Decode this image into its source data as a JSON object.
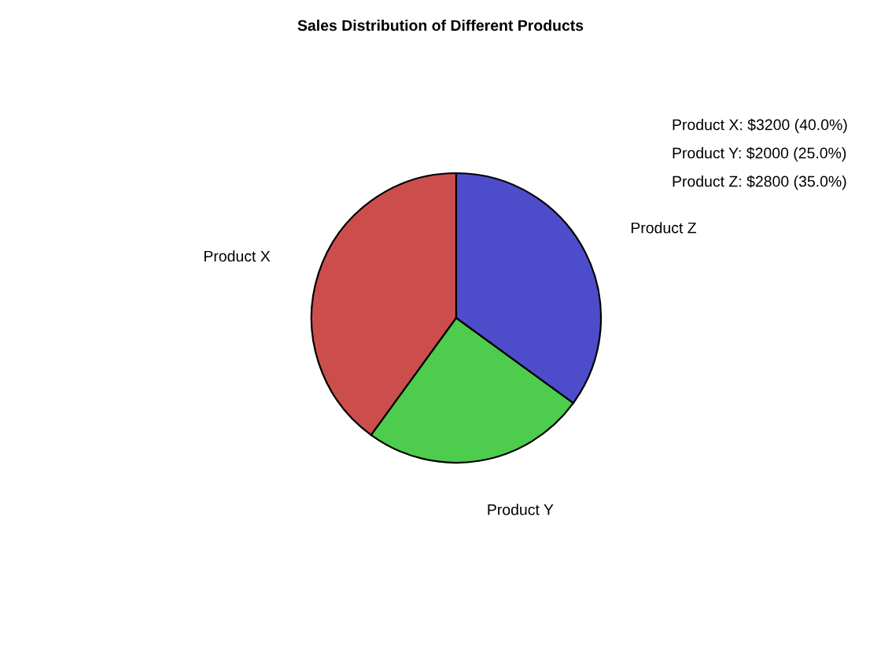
{
  "chart_data": {
    "type": "pie",
    "title": "Sales Distribution of Different Products",
    "categories": [
      "Product X",
      "Product Y",
      "Product Z"
    ],
    "values": [
      40.0,
      25.0,
      35.0
    ],
    "colors": [
      "#cc4e4c",
      "#4dcc4d",
      "#4d4dcc"
    ],
    "annotations": [
      "Product X: $3200 (40.0%)",
      "Product Y: $2000 (25.0%)",
      "Product Z: $2800 (35.0%)"
    ]
  }
}
